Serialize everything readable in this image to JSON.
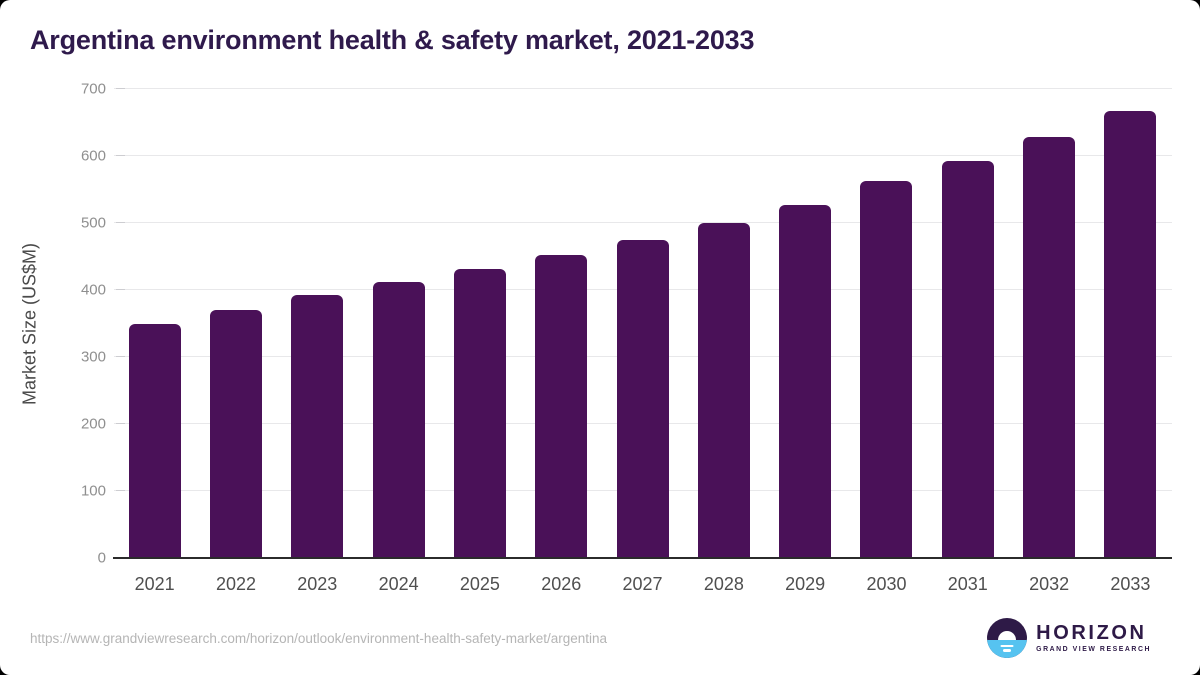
{
  "page": {
    "title": "Argentina environment health & safety market, 2021-2033"
  },
  "chart_data": {
    "type": "bar",
    "title": "Argentina environment health & safety market, 2021-2033",
    "categories": [
      "2021",
      "2022",
      "2023",
      "2024",
      "2025",
      "2026",
      "2027",
      "2028",
      "2029",
      "2030",
      "2031",
      "2032",
      "2033"
    ],
    "values": [
      349,
      370,
      392,
      412,
      431,
      452,
      474,
      500,
      527,
      563,
      592,
      629,
      667
    ],
    "xlabel": "",
    "ylabel": "Market Size (US$M)",
    "ylim": [
      0,
      700
    ],
    "yticks": [
      0,
      100,
      200,
      300,
      400,
      500,
      600,
      700
    ],
    "grid": "horizontal",
    "legend": "none",
    "bar_color": "#4a1158"
  },
  "footer": {
    "source_url": "https://www.grandviewresearch.com/horizon/outlook/environment-health-safety-market/argentina",
    "logo_title": "HORIZON",
    "logo_subtitle": "GRAND VIEW RESEARCH"
  },
  "colors": {
    "bar": "#4a1158",
    "title_text": "#2f1a4c",
    "axis_line": "#2b2b2b",
    "gridline": "#e8e8ea",
    "ytick_label": "#8f8f8f",
    "xtick_label": "#4f4f4f",
    "yaxis_title": "#4a4a4a",
    "url_text": "#b5b5b5",
    "logo_purple": "#2e1a47",
    "logo_blue": "#56c3f0"
  }
}
